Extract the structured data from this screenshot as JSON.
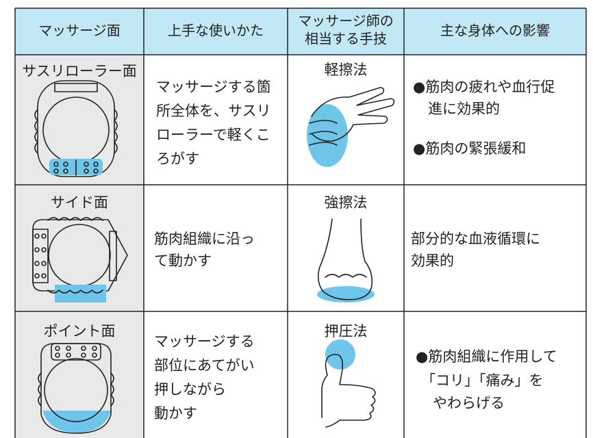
{
  "table": {
    "header": [
      "マッサージ面",
      "上手な使いかた",
      [
        "マッサージ師の",
        "相当する手技"
      ],
      "主な身体への影響"
    ],
    "rows": [
      {
        "surface": "サスリローラー面",
        "usage": [
          "マッサージする箇",
          "所全体を、サスリ",
          "ローラーで軽くこ",
          "ろがす"
        ],
        "technique": "軽擦法",
        "effects": [
          "●筋肉の疲れや血行促",
          "進に効果的",
          "●筋肉の緊張緩和"
        ]
      },
      {
        "surface": "サイド面",
        "usage": [
          "筋肉組織に沿っ",
          "て動かす"
        ],
        "technique": "強擦法",
        "effects": [
          "部分的な血液循環に",
          "効果的"
        ]
      },
      {
        "surface": "ポイント面",
        "usage": [
          "マッサージする",
          "部位にあてがい",
          "押しながら",
          "動かす"
        ],
        "technique": "押圧法",
        "effects": [
          "●筋肉組織に作用して",
          "「コリ」「痛み」を",
          "やわらげる"
        ]
      }
    ]
  }
}
